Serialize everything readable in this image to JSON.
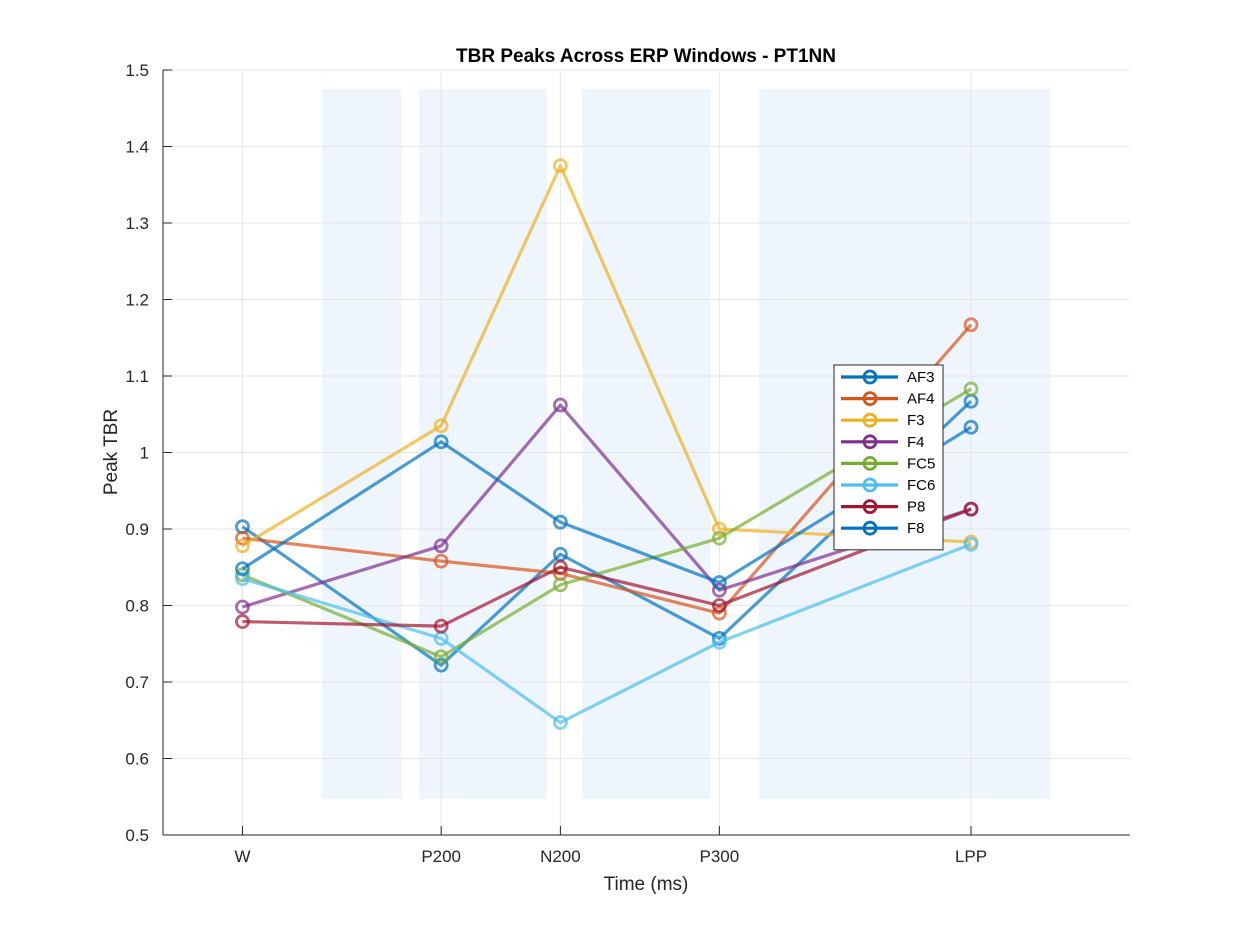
{
  "chart_data": {
    "type": "line",
    "title": "TBR Peaks Across ERP Windows - PT1NN",
    "xlabel": "Time (ms)",
    "ylabel": "Peak TBR",
    "categories": [
      "W",
      "P200",
      "N200",
      "P300",
      "LPP"
    ],
    "ylim": [
      0.5,
      1.5
    ],
    "yticks": [
      "0.5",
      "0.6",
      "0.7",
      "0.8",
      "0.9",
      "1",
      "1.1",
      "1.2",
      "1.3",
      "1.4",
      "1.5"
    ],
    "grid": true,
    "legend_placement": "right-middle",
    "shaded_windows": [
      {
        "label": "P200",
        "from": 0.203,
        "to": 0.221
      },
      {
        "label": "N200",
        "from": 0.225,
        "to": 0.254
      },
      {
        "label": "P300",
        "from": 0.262,
        "to": 0.291
      },
      {
        "label": "LPP",
        "from": 0.302,
        "to": 0.368
      }
    ],
    "window_ylim": [
      0.547,
      1.475
    ],
    "x_positions": [
      0.185,
      0.23,
      0.257,
      0.293,
      0.35
    ],
    "xlim": [
      0.167,
      0.386
    ],
    "series": [
      {
        "name": "AF3",
        "color": "#0072BD",
        "values": [
          0.903,
          0.722,
          0.867,
          0.757,
          1.067
        ]
      },
      {
        "name": "AF4",
        "color": "#D95319",
        "values": [
          0.888,
          0.858,
          0.842,
          0.79,
          1.167
        ]
      },
      {
        "name": "F3",
        "color": "#EDB120",
        "values": [
          0.878,
          1.035,
          1.375,
          0.9,
          0.883
        ]
      },
      {
        "name": "F4",
        "color": "#7E2F8E",
        "values": [
          0.798,
          0.878,
          1.062,
          0.82,
          0.926
        ]
      },
      {
        "name": "FC5",
        "color": "#77AC30",
        "values": [
          0.84,
          0.733,
          0.827,
          0.888,
          1.083
        ]
      },
      {
        "name": "FC6",
        "color": "#4DBEEE",
        "values": [
          0.835,
          0.757,
          0.647,
          0.752,
          0.88
        ]
      },
      {
        "name": "P8",
        "color": "#A2142F",
        "values": [
          0.779,
          0.773,
          0.85,
          0.8,
          0.926
        ]
      },
      {
        "name": "F8",
        "color": "#0072BD",
        "values": [
          0.848,
          1.014,
          0.909,
          0.83,
          1.033
        ]
      }
    ]
  }
}
